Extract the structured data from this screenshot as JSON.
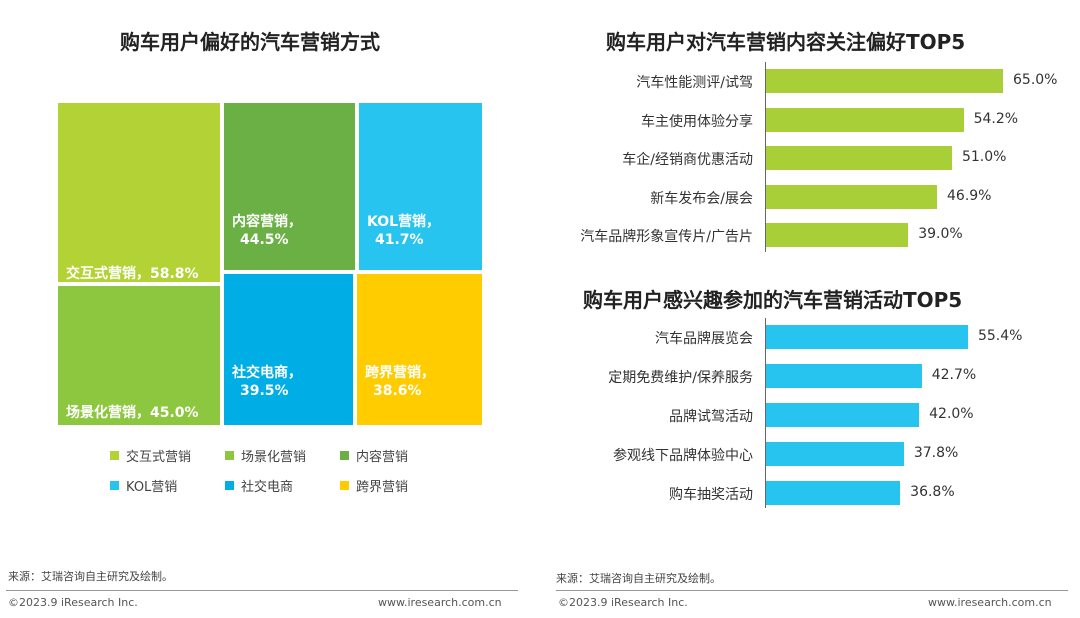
{
  "left": {
    "title": "购车用户偏好的汽车营销方式",
    "legend": [
      "交互式营销",
      "场景化营销",
      "内容营销",
      "KOL营销",
      "社交电商",
      "跨界营销"
    ]
  },
  "right": {
    "title1": "购车用户对汽车营销内容关注偏好TOP5",
    "title2": "购车用户感兴趣参加的汽车营销活动TOP5"
  },
  "footer": {
    "source_left": "来源：艾瑞咨询自主研究及绘制。",
    "source_right": "来源：艾瑞咨询自主研究及绘制。",
    "copyright_left": "©2023.9 iResearch Inc.",
    "url_left": "www.iresearch.com.cn",
    "copyright_right": "©2023.9 iResearch Inc.",
    "url_right": "www.iresearch.com.cn"
  },
  "chart_data": [
    {
      "type": "treemap",
      "title": "购车用户偏好的汽车营销方式",
      "items": [
        {
          "name": "交互式营销",
          "label": "交互式营销，58.8%",
          "value": 58.8,
          "color": "#b3d235"
        },
        {
          "name": "场景化营销",
          "label": "场景化营销，45.0%",
          "value": 45.0,
          "color": "#8dc63f"
        },
        {
          "name": "内容营销",
          "label": "内容营销，44.5%",
          "value": 44.5,
          "color": "#6ab045"
        },
        {
          "name": "KOL营销",
          "label": "KOL营销，41.7%",
          "value": 41.7,
          "color": "#27c4f0"
        },
        {
          "name": "社交电商",
          "label": "社交电商，39.5%",
          "value": 39.5,
          "color": "#00aee6"
        },
        {
          "name": "跨界营销",
          "label": "跨界营销，38.6%",
          "value": 38.6,
          "color": "#ffcc00"
        }
      ]
    },
    {
      "type": "bar",
      "orientation": "horizontal",
      "title": "购车用户对汽车营销内容关注偏好TOP5",
      "color": "#a8cf38",
      "categories": [
        "汽车性能测评/试驾",
        "车主使用体验分享",
        "车企/经销商优惠活动",
        "新车发布会/展会",
        "汽车品牌形象宣传片/广告片"
      ],
      "values": [
        65.0,
        54.2,
        51.0,
        46.9,
        39.0
      ],
      "value_labels": [
        "65.0%",
        "54.2%",
        "51.0%",
        "46.9%",
        "39.0%"
      ]
    },
    {
      "type": "bar",
      "orientation": "horizontal",
      "title": "购车用户感兴趣参加的汽车营销活动TOP5",
      "color": "#27c4f0",
      "categories": [
        "汽车品牌展览会",
        "定期免费维护/保养服务",
        "品牌试驾活动",
        "参观线下品牌体验中心",
        "购车抽奖活动"
      ],
      "values": [
        55.4,
        42.7,
        42.0,
        37.8,
        36.8
      ],
      "value_labels": [
        "55.4%",
        "42.7%",
        "42.0%",
        "37.8%",
        "36.8%"
      ]
    }
  ]
}
